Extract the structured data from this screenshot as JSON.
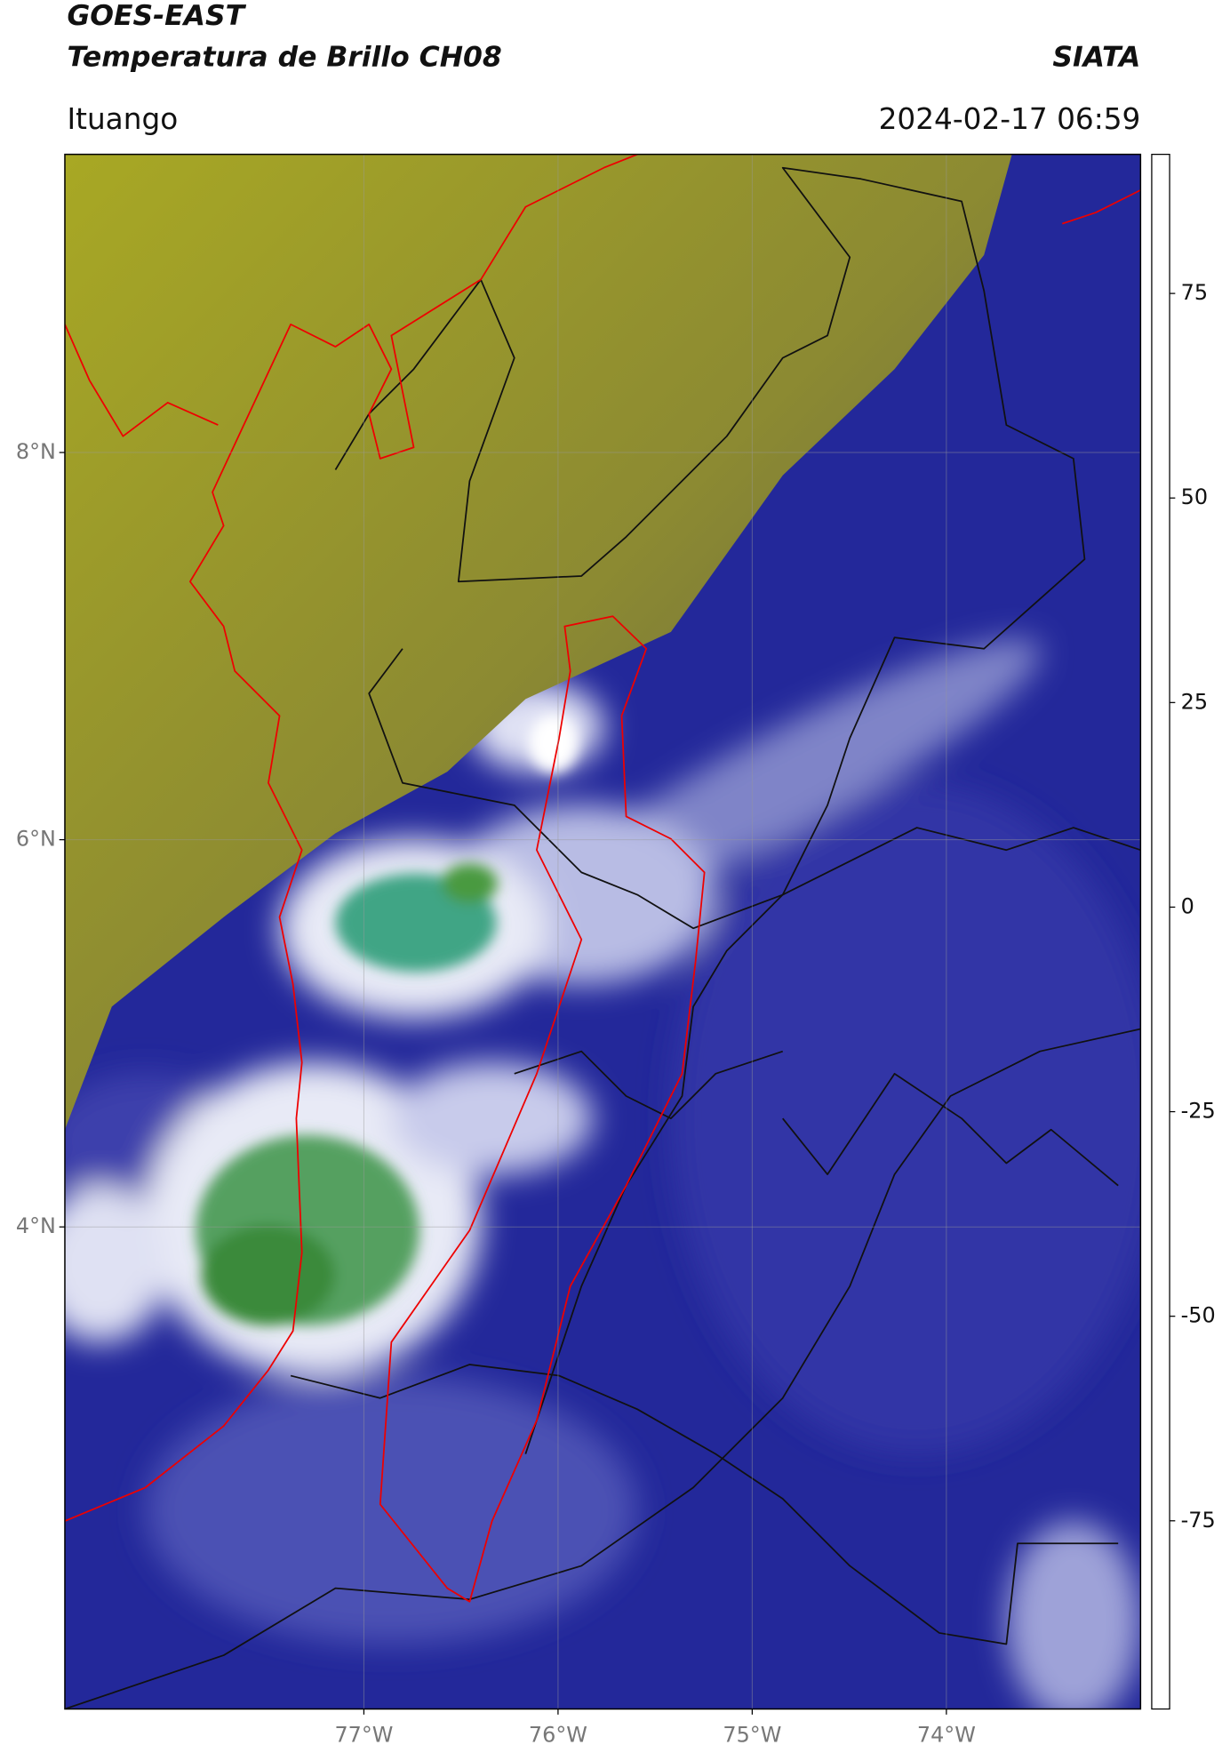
{
  "header": {
    "title": "GOES-EAST",
    "subtitle": "Temperatura de Brillo CH08",
    "brand": "SIATA",
    "location": "Ituango",
    "datetime": "2024-02-17 06:59"
  },
  "chart_data": {
    "type": "map",
    "xlim": [
      -78.54,
      -73.0
    ],
    "ylim": [
      1.51,
      9.54
    ],
    "xticks": [
      {
        "value": -77,
        "label": "77°W"
      },
      {
        "value": -76,
        "label": "76°W"
      },
      {
        "value": -75,
        "label": "75°W"
      },
      {
        "value": -74,
        "label": "74°W"
      }
    ],
    "yticks": [
      {
        "value": 8,
        "label": "8°N"
      },
      {
        "value": 6,
        "label": "6°N"
      },
      {
        "value": 4,
        "label": "4°N"
      }
    ],
    "grid": true,
    "colorbar": {
      "lim": [
        -98,
        92
      ],
      "ticks": [
        75,
        50,
        25,
        0,
        -25,
        -50,
        -75
      ],
      "stops": [
        {
          "value": -98,
          "color": "#ffffff"
        },
        {
          "value": -95,
          "color": "#00e0dc"
        },
        {
          "value": -80,
          "color": "#2ea37a"
        },
        {
          "value": -65,
          "color": "#3d8a2e"
        },
        {
          "value": -55,
          "color": "#ffffff"
        },
        {
          "value": -45,
          "color": "#b8bce4"
        },
        {
          "value": -35,
          "color": "#5a5eb4"
        },
        {
          "value": -27,
          "color": "#000080"
        },
        {
          "value": -25,
          "color": "#4d4d4d"
        },
        {
          "value": -15,
          "color": "#b4b41e"
        },
        {
          "value": -10,
          "color": "#ffff00"
        },
        {
          "value": 0,
          "color": "#ff8000"
        },
        {
          "value": 8,
          "color": "#ff0000"
        },
        {
          "value": 8,
          "color": "#000000"
        },
        {
          "value": 92,
          "color": "#000000"
        }
      ]
    }
  }
}
